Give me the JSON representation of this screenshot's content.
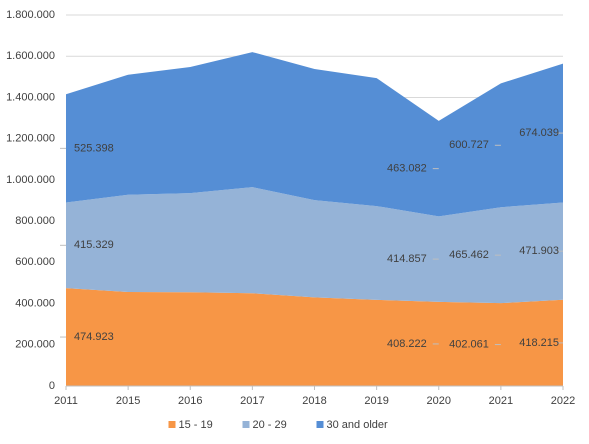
{
  "chart_data": {
    "type": "stacked_area",
    "categories": [
      "2011",
      "2015",
      "2016",
      "2017",
      "2018",
      "2019",
      "2020",
      "2021",
      "2022"
    ],
    "series": [
      {
        "name": "15 - 19",
        "color": "#f79646",
        "values": [
          474923,
          456000,
          455000,
          450000,
          430000,
          418000,
          408222,
          402061,
          418215
        ],
        "value_labels": [
          "474.923",
          null,
          null,
          null,
          null,
          null,
          "408.222",
          "402.061",
          "418.215"
        ]
      },
      {
        "name": "20 - 29",
        "color": "#95b3d7",
        "values": [
          415329,
          472000,
          481000,
          515000,
          472000,
          455000,
          414857,
          465462,
          471903
        ],
        "value_labels": [
          "415.329",
          null,
          null,
          null,
          null,
          null,
          "414.857",
          "465.462",
          "471.903"
        ]
      },
      {
        "name": "30 and older",
        "color": "#558ed5",
        "values": [
          525398,
          582000,
          612000,
          655000,
          636000,
          621000,
          463082,
          600727,
          674039
        ],
        "value_labels": [
          "525.398",
          null,
          null,
          null,
          null,
          null,
          "463.082",
          "600.727",
          "674.039"
        ]
      }
    ],
    "ylim": [
      0,
      1800000
    ],
    "yticks": [
      {
        "value": 0,
        "label": "0"
      },
      {
        "value": 200000,
        "label": "200.000"
      },
      {
        "value": 400000,
        "label": "400.000"
      },
      {
        "value": 600000,
        "label": "600.000"
      },
      {
        "value": 800000,
        "label": "800.000"
      },
      {
        "value": 1000000,
        "label": "1.000.000"
      },
      {
        "value": 1200000,
        "label": "1.200.000"
      },
      {
        "value": 1400000,
        "label": "1.400.000"
      },
      {
        "value": 1600000,
        "label": "1.600.000"
      },
      {
        "value": 1800000,
        "label": "1.800.000"
      }
    ],
    "grid": true,
    "legend": "bottom"
  }
}
